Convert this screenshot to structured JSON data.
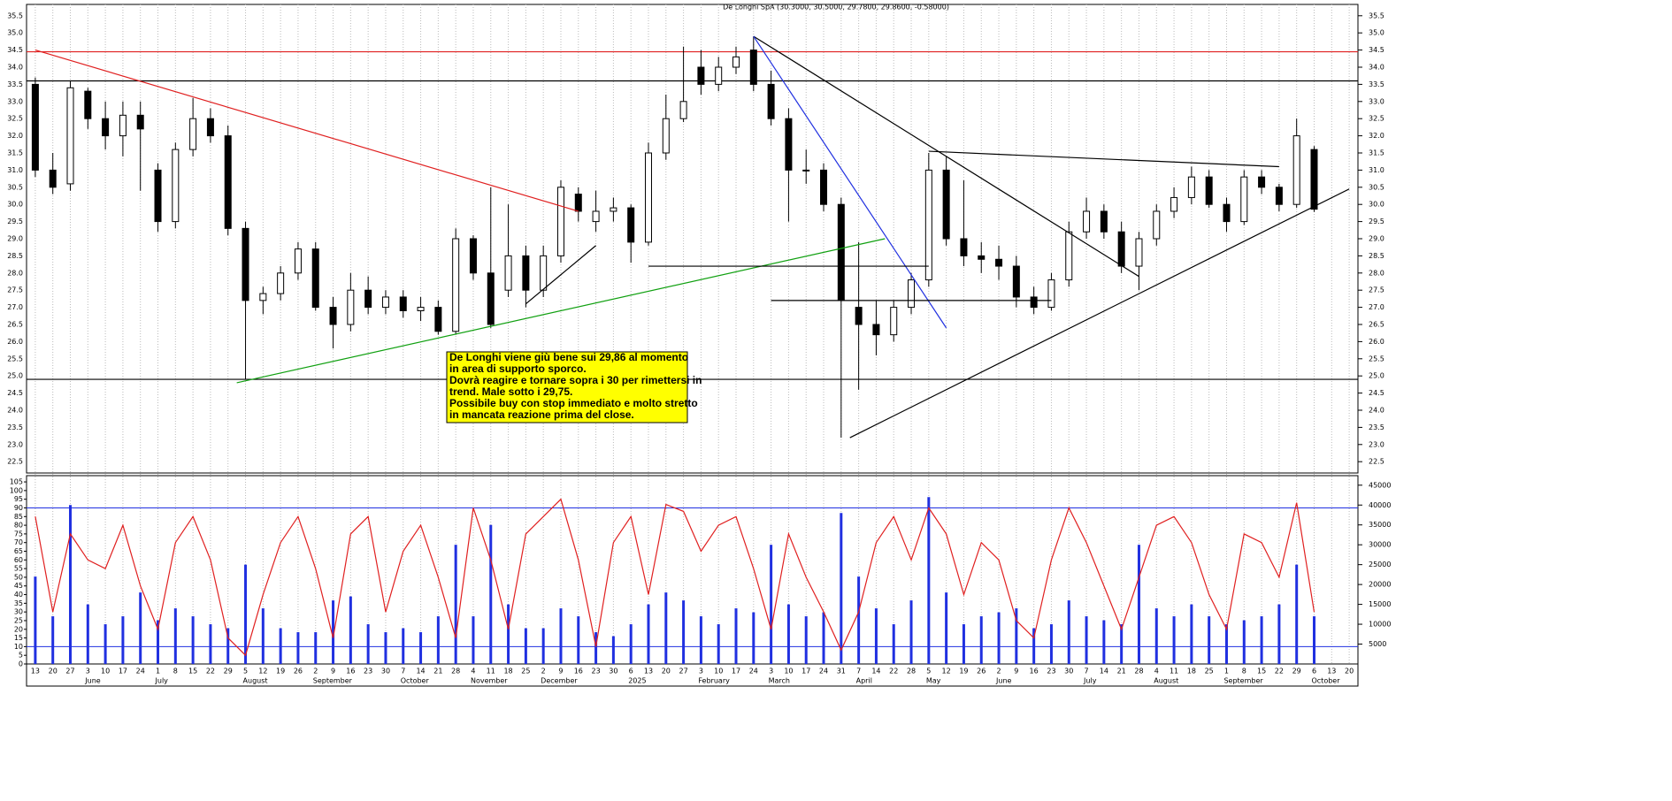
{
  "chart_data": {
    "type": "candlestick",
    "title": "De Longhi SpA (30.3000, 30.5000, 29.7800, 29.8600, -0.58000)",
    "categories": [
      "13",
      "20",
      "27",
      "3",
      "10",
      "17",
      "24",
      "1",
      "8",
      "15",
      "22",
      "29",
      "5",
      "12",
      "19",
      "26",
      "2",
      "9",
      "16",
      "23",
      "30",
      "7",
      "14",
      "21",
      "28",
      "4",
      "11",
      "18",
      "25",
      "2",
      "9",
      "16",
      "23",
      "30",
      "6",
      "13",
      "20",
      "27",
      "3",
      "10",
      "17",
      "24",
      "3",
      "10",
      "17",
      "24",
      "31",
      "7",
      "14",
      "22",
      "28",
      "5",
      "12",
      "19",
      "26",
      "2",
      "9",
      "16",
      "23",
      "30",
      "7",
      "14",
      "21",
      "28",
      "4",
      "11",
      "18",
      "25",
      "1",
      "8",
      "15",
      "22",
      "29",
      "6",
      "13",
      "20"
    ],
    "months": [
      {
        "label": "June",
        "index": 3
      },
      {
        "label": "July",
        "index": 7
      },
      {
        "label": "August",
        "index": 12
      },
      {
        "label": "September",
        "index": 16
      },
      {
        "label": "October",
        "index": 21
      },
      {
        "label": "November",
        "index": 25
      },
      {
        "label": "December",
        "index": 29
      },
      {
        "label": "2025",
        "index": 34
      },
      {
        "label": "February",
        "index": 38
      },
      {
        "label": "March",
        "index": 42
      },
      {
        "label": "April",
        "index": 47
      },
      {
        "label": "May",
        "index": 51
      },
      {
        "label": "June",
        "index": 55
      },
      {
        "label": "July",
        "index": 60
      },
      {
        "label": "August",
        "index": 64
      },
      {
        "label": "September",
        "index": 68
      },
      {
        "label": "October",
        "index": 73
      }
    ],
    "open": [
      33.5,
      31.0,
      30.6,
      33.3,
      32.5,
      32.0,
      32.6,
      31.0,
      29.5,
      31.6,
      32.5,
      32.0,
      29.3,
      27.2,
      27.4,
      28.0,
      28.7,
      27.0,
      26.5,
      27.5,
      27.0,
      27.3,
      26.9,
      27.0,
      26.3,
      29.0,
      28.0,
      27.5,
      28.5,
      27.5,
      28.5,
      30.3,
      29.5,
      29.8,
      29.9,
      28.9,
      31.5,
      32.5,
      34.0,
      33.5,
      34.0,
      34.5,
      33.5,
      32.5,
      31.0,
      31.0,
      30.0,
      27.0,
      26.5,
      26.2,
      27.0,
      27.8,
      31.0,
      29.0,
      28.5,
      28.4,
      28.2,
      27.3,
      27.0,
      27.8,
      29.2,
      29.8,
      29.2,
      28.2,
      29.0,
      29.8,
      30.2,
      30.8,
      30.0,
      29.5,
      30.8,
      30.5,
      30.0,
      31.6,
      null,
      null
    ],
    "high": [
      33.7,
      31.5,
      33.6,
      33.4,
      33.0,
      33.0,
      33.0,
      31.2,
      31.8,
      33.1,
      32.8,
      32.3,
      29.5,
      27.6,
      28.2,
      28.9,
      28.9,
      27.3,
      28.0,
      27.9,
      27.5,
      27.5,
      27.3,
      27.2,
      29.3,
      29.1,
      30.5,
      30.0,
      28.8,
      28.8,
      30.7,
      30.5,
      30.4,
      30.2,
      30.0,
      31.8,
      33.2,
      34.6,
      34.5,
      34.3,
      34.6,
      34.9,
      33.9,
      32.8,
      31.6,
      31.2,
      30.2,
      28.9,
      27.2,
      27.2,
      28.0,
      31.5,
      31.4,
      30.7,
      28.9,
      28.8,
      28.5,
      27.6,
      28.0,
      29.5,
      30.2,
      30.0,
      29.5,
      29.2,
      30.0,
      30.5,
      31.1,
      31.0,
      30.2,
      31.0,
      31.0,
      30.6,
      32.5,
      31.7,
      null,
      null
    ],
    "low": [
      30.8,
      30.3,
      30.4,
      32.2,
      31.6,
      31.4,
      30.4,
      29.2,
      29.3,
      31.4,
      31.8,
      29.1,
      24.9,
      26.8,
      27.2,
      27.8,
      26.9,
      25.8,
      26.3,
      26.8,
      26.8,
      26.7,
      26.6,
      26.2,
      26.2,
      27.8,
      26.4,
      27.3,
      27.0,
      27.3,
      28.3,
      29.5,
      29.2,
      29.5,
      28.3,
      28.8,
      31.3,
      32.4,
      33.2,
      33.3,
      33.8,
      33.3,
      32.3,
      29.5,
      30.6,
      29.8,
      23.2,
      24.6,
      25.6,
      26.0,
      26.8,
      27.6,
      28.8,
      28.2,
      28.0,
      27.8,
      27.0,
      26.8,
      26.9,
      27.6,
      29.0,
      29.0,
      28.0,
      27.5,
      28.8,
      29.6,
      30.0,
      29.9,
      29.2,
      29.4,
      30.3,
      29.8,
      29.9,
      29.78,
      null,
      null
    ],
    "close": [
      31.0,
      30.5,
      33.4,
      32.5,
      32.0,
      32.6,
      32.2,
      29.5,
      31.6,
      32.5,
      32.0,
      29.3,
      27.2,
      27.4,
      28.0,
      28.7,
      27.0,
      26.5,
      27.5,
      27.0,
      27.3,
      26.9,
      27.0,
      26.3,
      29.0,
      28.0,
      26.5,
      28.5,
      27.5,
      28.5,
      30.5,
      29.8,
      29.8,
      29.9,
      28.9,
      31.5,
      32.5,
      33.0,
      33.5,
      34.0,
      34.3,
      33.5,
      32.5,
      31.0,
      31.0,
      30.0,
      27.2,
      26.5,
      26.2,
      27.0,
      27.8,
      31.0,
      29.0,
      28.5,
      28.4,
      28.2,
      27.3,
      27.0,
      27.8,
      29.2,
      29.8,
      29.2,
      28.2,
      29.0,
      29.8,
      30.2,
      30.8,
      30.0,
      29.5,
      30.8,
      30.5,
      30.0,
      32.0,
      29.86,
      null,
      null
    ],
    "ylim": [
      22.17,
      35.83
    ],
    "yticks": [
      22.5,
      {
        "value": 23,
        "label": "23.0"
      },
      23.5,
      {
        "value": 24,
        "label": "24.0"
      },
      24.5,
      {
        "value": 25,
        "label": "25.0"
      },
      25.5,
      {
        "value": 26,
        "label": "26.0"
      },
      26.5,
      {
        "value": 27,
        "label": "27.0"
      },
      27.5,
      {
        "value": 28,
        "label": "28.0"
      },
      28.5,
      {
        "value": 29,
        "label": "29.0"
      },
      29.5,
      {
        "value": 30,
        "label": "30.0"
      },
      30.5,
      {
        "value": 31,
        "label": "31.0"
      },
      31.5,
      {
        "value": 32,
        "label": "32.0"
      },
      32.5,
      {
        "value": 33,
        "label": "33.0"
      },
      33.5,
      {
        "value": 34,
        "label": "34.0"
      },
      34.5,
      {
        "value": 35,
        "label": "35.0"
      },
      35.5
    ],
    "hlines": [
      {
        "value": 34.45,
        "color": "#e02020"
      },
      {
        "value": 33.6,
        "color": "#000000"
      },
      {
        "value": 24.9,
        "color": "#000000"
      }
    ],
    "trendlines": [
      {
        "color": "#e02020",
        "points": [
          [
            0,
            34.5
          ],
          [
            31,
            29.8
          ]
        ]
      },
      {
        "color": "#10a010",
        "points": [
          [
            11.5,
            24.8
          ],
          [
            48.5,
            29.0
          ]
        ]
      },
      {
        "color": "#000000",
        "points": [
          [
            41,
            34.9
          ],
          [
            63,
            27.9
          ]
        ]
      },
      {
        "color": "#2030e0",
        "points": [
          [
            41,
            34.9
          ],
          [
            52,
            26.4
          ]
        ]
      },
      {
        "color": "#000000",
        "points": [
          [
            28,
            27.1
          ],
          [
            32,
            28.8
          ]
        ]
      },
      {
        "color": "#000000",
        "points": [
          [
            35,
            28.2
          ],
          [
            51,
            28.2
          ]
        ]
      },
      {
        "color": "#000000",
        "points": [
          [
            42,
            27.2
          ],
          [
            58,
            27.2
          ]
        ]
      },
      {
        "color": "#000000",
        "points": [
          [
            51,
            31.55
          ],
          [
            71,
            31.1
          ]
        ]
      },
      {
        "color": "#000000",
        "points": [
          [
            46.5,
            23.2
          ],
          [
            75,
            30.45
          ]
        ]
      }
    ],
    "annotation": {
      "lines": [
        "De Longhi viene giù bene sui 29,86 al momento",
        "in area di supporto sporco.",
        "Dovrà reagire e tornare sopra i 30 per rimettersi in",
        "trend. Male sotto i 29,75.",
        "Possibile buy con stop immediato e molto stretto",
        "in mancata reazione prima del close."
      ]
    },
    "oscillator": {
      "color": "#e02020",
      "values": [
        85,
        30,
        75,
        60,
        55,
        80,
        45,
        20,
        70,
        85,
        60,
        15,
        5,
        40,
        70,
        85,
        55,
        15,
        75,
        85,
        30,
        65,
        80,
        50,
        15,
        90,
        60,
        20,
        75,
        85,
        95,
        60,
        10,
        70,
        85,
        40,
        92,
        88,
        65,
        80,
        85,
        55,
        20,
        75,
        50,
        30,
        8,
        30,
        70,
        85,
        60,
        90,
        75,
        40,
        70,
        60,
        25,
        15,
        60,
        90,
        70,
        45,
        20,
        50,
        80,
        85,
        70,
        40,
        20,
        75,
        70,
        50,
        93,
        30,
        null,
        null
      ],
      "ylim": [
        0,
        108.6
      ],
      "yticks": [
        0,
        5,
        10,
        15,
        20,
        25,
        30,
        35,
        40,
        45,
        50,
        55,
        60,
        65,
        70,
        75,
        80,
        85,
        90,
        95,
        100,
        105
      ],
      "levels": [
        90,
        10
      ],
      "level_color": "#2030e0"
    },
    "volume": {
      "color": "#2030e0",
      "values": [
        22000,
        12000,
        40000,
        15000,
        10000,
        12000,
        18000,
        11000,
        14000,
        12000,
        10000,
        9000,
        25000,
        14000,
        9000,
        8000,
        8000,
        16000,
        17000,
        10000,
        8000,
        9000,
        8000,
        12000,
        30000,
        12000,
        35000,
        15000,
        9000,
        9000,
        14000,
        12000,
        8000,
        7000,
        10000,
        15000,
        18000,
        16000,
        12000,
        10000,
        14000,
        13000,
        30000,
        15000,
        12000,
        13000,
        38000,
        22000,
        14000,
        10000,
        16000,
        42000,
        18000,
        10000,
        12000,
        13000,
        14000,
        9000,
        10000,
        16000,
        12000,
        11000,
        10000,
        30000,
        14000,
        12000,
        15000,
        12000,
        10000,
        11000,
        12000,
        15000,
        25000,
        12000,
        null,
        null
      ],
      "ylim": [
        0,
        47400
      ],
      "yticks": [
        5000,
        10000,
        15000,
        20000,
        25000,
        30000,
        35000,
        40000,
        45000
      ]
    }
  }
}
